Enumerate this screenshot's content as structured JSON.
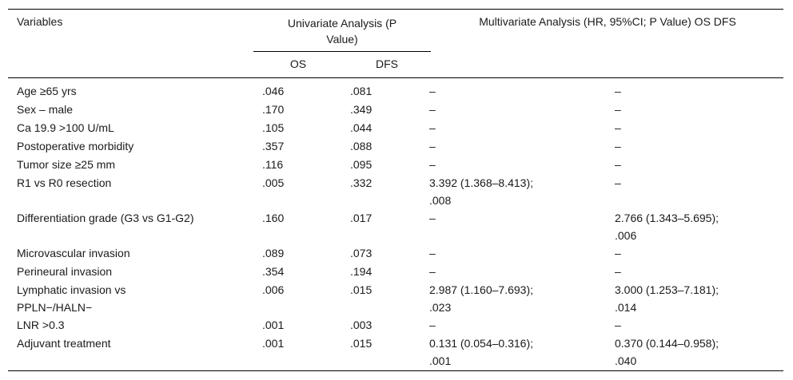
{
  "header": {
    "variables": "Variables",
    "univariate_line1": "Univariate Analysis (P",
    "univariate_line2": "Value)",
    "multivariate": "Multivariate Analysis (HR, 95%CI; P Value) OS DFS",
    "os": "OS",
    "dfs": "DFS"
  },
  "rows": [
    {
      "variable": "Age ≥65 yrs",
      "os": ".046",
      "dfs": ".081",
      "m1": "–",
      "m2": "–"
    },
    {
      "variable": "Sex – male",
      "os": ".170",
      "dfs": ".349",
      "m1": "–",
      "m2": "–"
    },
    {
      "variable": "Ca 19.9 >100 U/mL",
      "os": ".105",
      "dfs": ".044",
      "m1": "–",
      "m2": "–"
    },
    {
      "variable": "Postoperative morbidity",
      "os": ".357",
      "dfs": ".088",
      "m1": "–",
      "m2": "–"
    },
    {
      "variable": "Tumor size ≥25 mm",
      "os": ".116",
      "dfs": ".095",
      "m1": "–",
      "m2": "–"
    },
    {
      "variable": "R1 vs R0 resection",
      "os": ".005",
      "dfs": ".332",
      "m1": "3.392 (1.368–8.413);",
      "m1b": ".008",
      "m2": "–"
    },
    {
      "variable": "Differentiation grade (G3 vs G1-G2)",
      "os": ".160",
      "dfs": ".017",
      "m1": "–",
      "m2": "2.766 (1.343–5.695);",
      "m2b": ".006"
    },
    {
      "variable": "Microvascular invasion",
      "os": ".089",
      "dfs": ".073",
      "m1": "–",
      "m2": "–"
    },
    {
      "variable": "Perineural invasion",
      "os": ".354",
      "dfs": ".194",
      "m1": "–",
      "m2": "–"
    },
    {
      "variable": "Lymphatic invasion vs",
      "variable_b": "PPLN−/HALN−",
      "os": ".006",
      "dfs": ".015",
      "m1": "2.987 (1.160–7.693);",
      "m1b": ".023",
      "m2": "3.000 (1.253–7.181);",
      "m2b": ".014"
    },
    {
      "variable": "LNR >0.3",
      "os": ".001",
      "dfs": ".003",
      "m1": "–",
      "m2": "–"
    },
    {
      "variable": "Adjuvant treatment",
      "os": ".001",
      "dfs": ".015",
      "m1": "0.131 (0.054–0.316);",
      "m1b": ".001",
      "m2": "0.370 (0.144–0.958);",
      "m2b": ".040"
    }
  ]
}
